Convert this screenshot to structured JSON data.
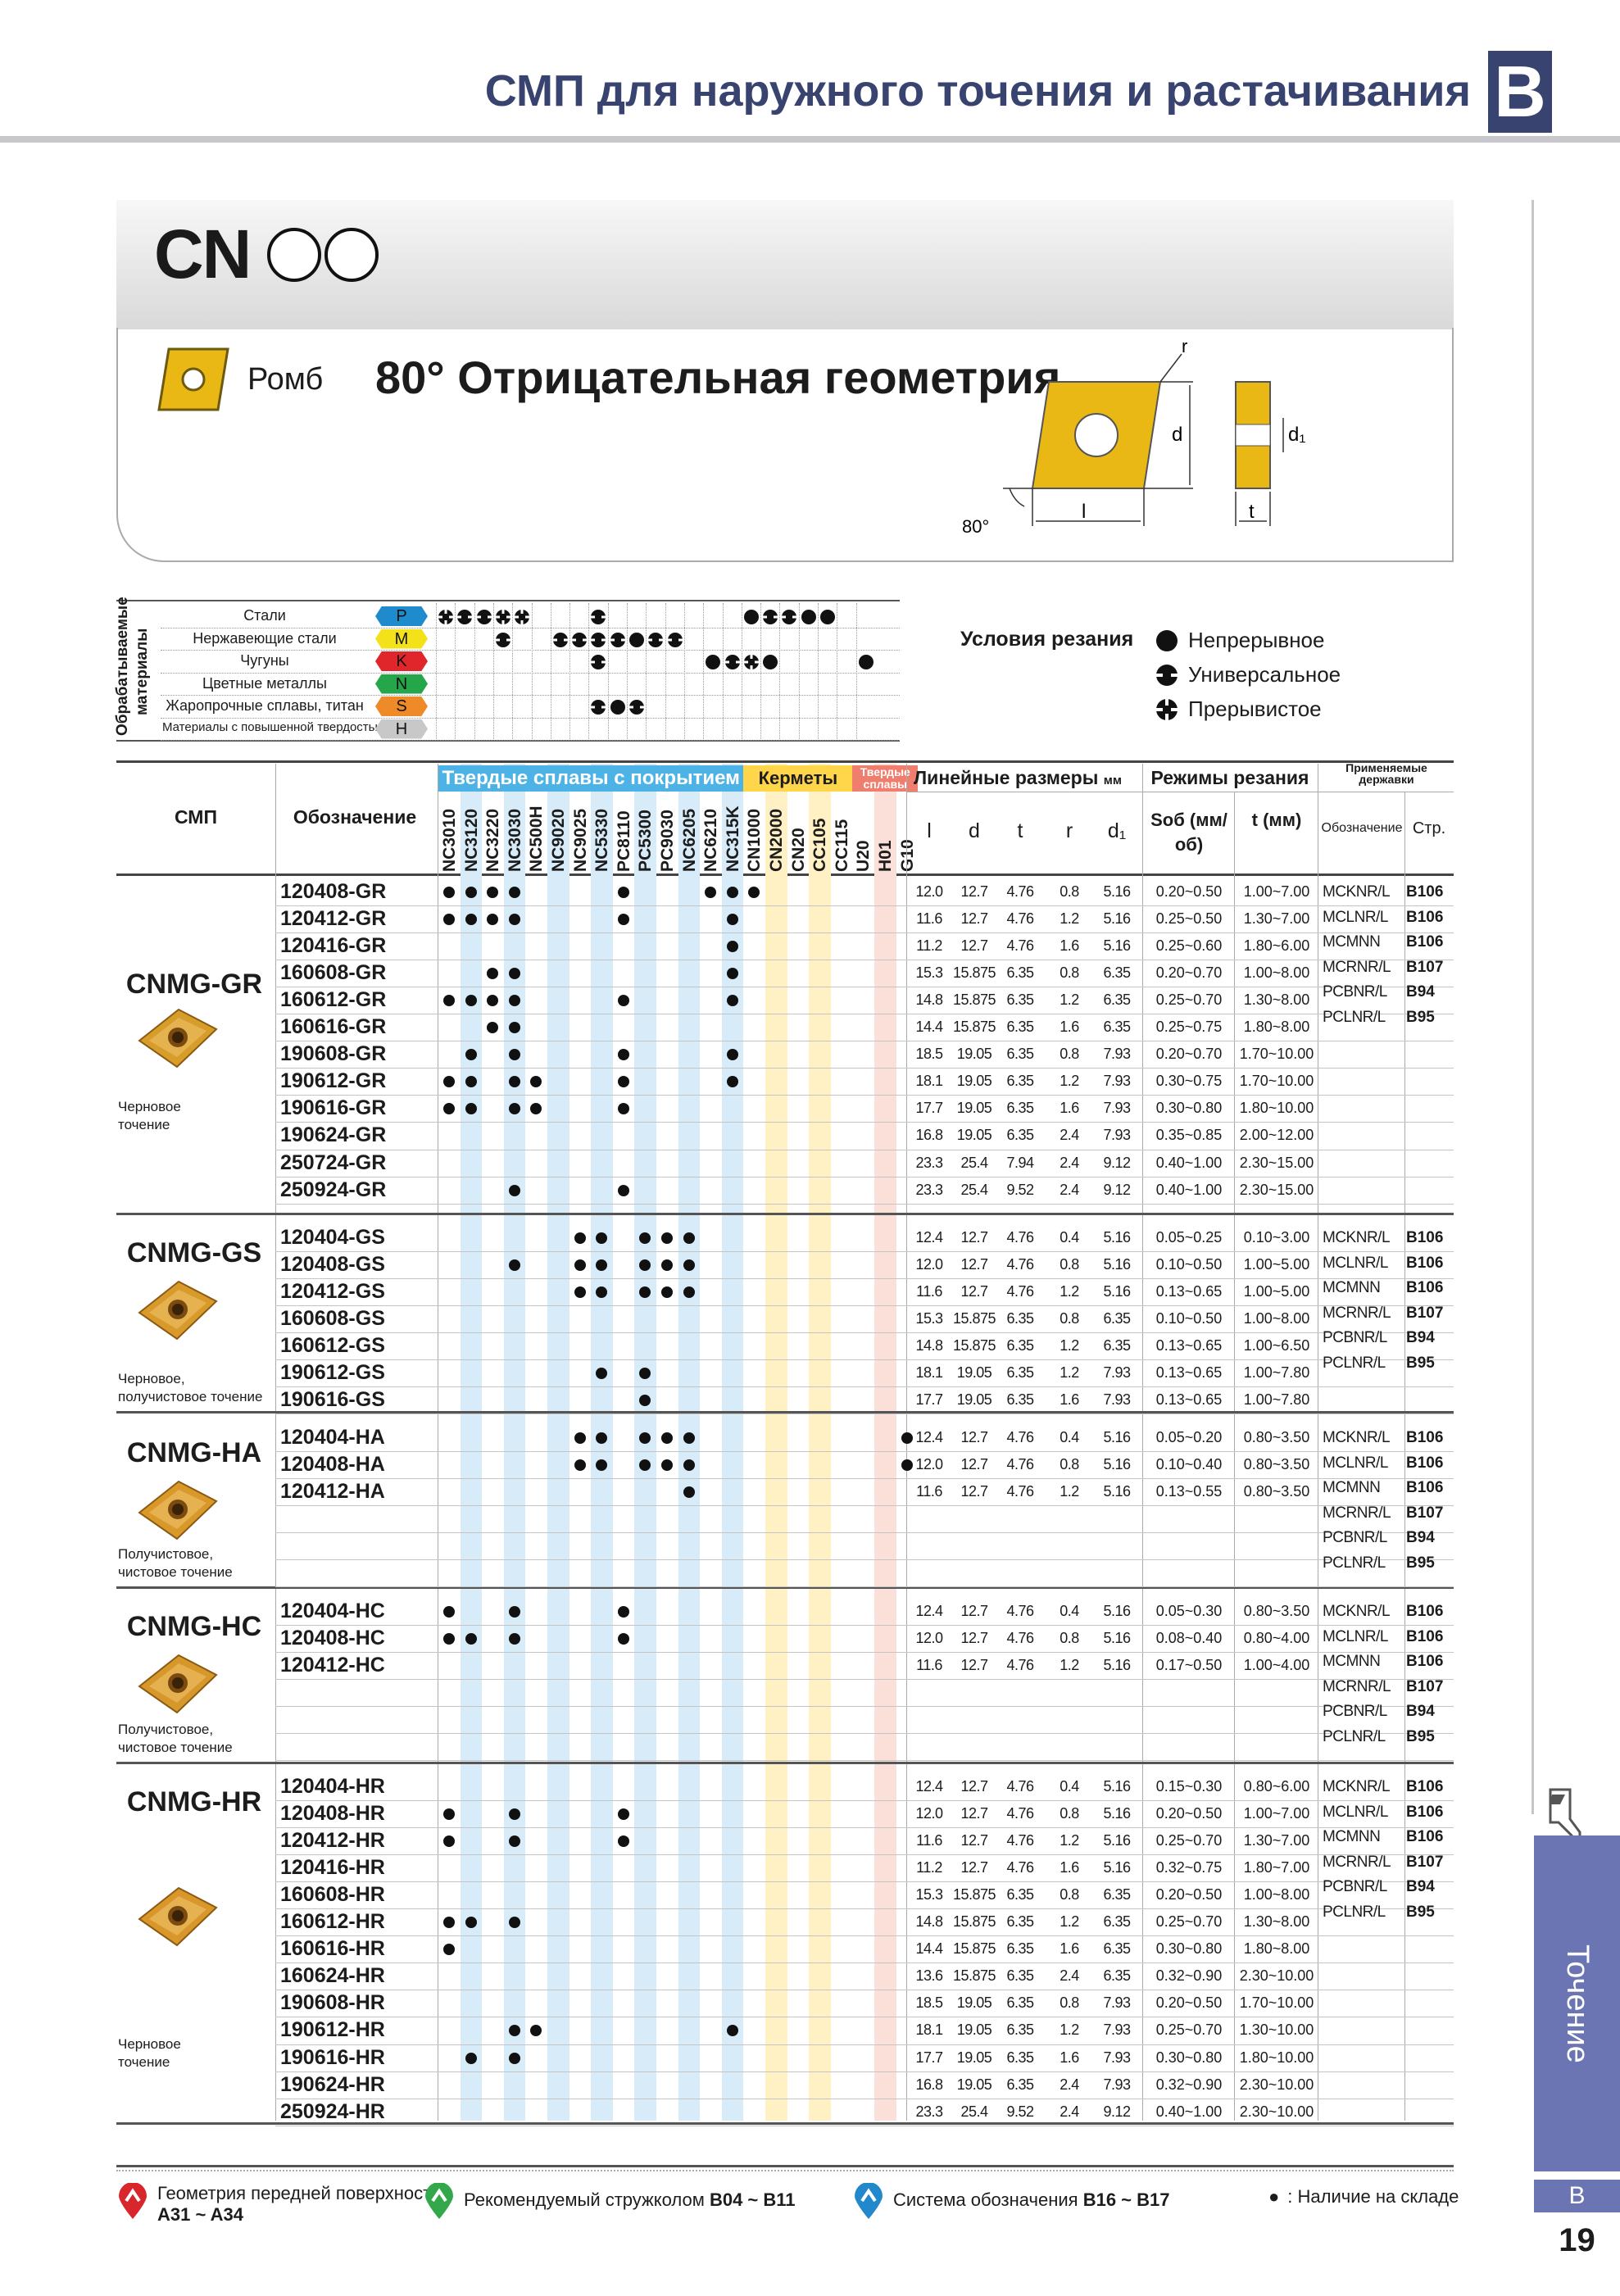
{
  "header": {
    "title": "СМП для наружного точения и растачивания",
    "section_letter": "B"
  },
  "side": {
    "label": "Точение",
    "letter": "B",
    "page": "19"
  },
  "code": {
    "prefix": "CN"
  },
  "shape": {
    "name": "Ромб",
    "geometry": "80° Отрицательная геометрия",
    "dims": {
      "r": "r",
      "d": "d",
      "d1": "d₁",
      "l": "l",
      "t": "t",
      "angle": "80°"
    }
  },
  "materials": {
    "group_label": "Обрабатываемые материалы",
    "rows": [
      {
        "name": "Стали",
        "code": "P",
        "color": "#1e8ccc"
      },
      {
        "name": "Нержавеющие стали",
        "code": "M",
        "color": "#f3e119"
      },
      {
        "name": "Чугуны",
        "code": "K",
        "color": "#e0262b"
      },
      {
        "name": "Цветные металлы",
        "code": "N",
        "color": "#26a64a"
      },
      {
        "name": "Жаропрочные сплавы, титан",
        "code": "S",
        "color": "#ef8a29"
      },
      {
        "name": "Материалы с повышенной твердостью",
        "code": "H",
        "color": "#c8c8c8"
      }
    ]
  },
  "conditions": {
    "title": "Условия резания",
    "items": [
      "Непрерывное",
      "Универсальное",
      "Прерывистое"
    ]
  },
  "table": {
    "col_smp": "СМП",
    "col_designation": "Обозначение",
    "grp_coated": "Твердые сплавы с покрытием",
    "grp_cermet": "Керметы",
    "grp_carbide": "Твердые сплавы",
    "grp_dims": "Линейные размеры",
    "dims_unit": "мм",
    "grp_cutting": "Режимы резания",
    "grp_holders": "Применяемые державки",
    "grades": [
      "NC3010",
      "NC3120",
      "NC3220",
      "NC3030",
      "NC500H",
      "NC9020",
      "NC9025",
      "NC5330",
      "PC8110",
      "PC5300",
      "PC9030",
      "NC6205",
      "NC6210",
      "NC315K",
      "CN1000",
      "CN2000",
      "CN20",
      "CC105",
      "CC115",
      "U20",
      "H01",
      "G10"
    ],
    "dim_cols": [
      "l",
      "d",
      "t",
      "r",
      "d₁"
    ],
    "cut_cols": [
      "Sоб (мм/об)",
      "t (мм)"
    ],
    "holder_cols": [
      "Обозначение",
      "Стр."
    ]
  },
  "groups": [
    {
      "name": "CNMG-GR",
      "caption": [
        "Черновое",
        "точение"
      ],
      "holders": [
        [
          "MCKNR/L",
          "B106"
        ],
        [
          "MCLNR/L",
          "B106"
        ],
        [
          "MCMNN",
          "B106"
        ],
        [
          "MCRNR/L",
          "B107"
        ],
        [
          "PCBNR/L",
          "B94"
        ],
        [
          "PCLNR/L",
          "B95"
        ]
      ],
      "rows": [
        [
          "120408-GR",
          "12.0",
          "12.7",
          "4.76",
          "0.8",
          "5.16",
          "0.20~0.50",
          "1.00~7.00"
        ],
        [
          "120412-GR",
          "11.6",
          "12.7",
          "4.76",
          "1.2",
          "5.16",
          "0.25~0.50",
          "1.30~7.00"
        ],
        [
          "120416-GR",
          "11.2",
          "12.7",
          "4.76",
          "1.6",
          "5.16",
          "0.25~0.60",
          "1.80~6.00"
        ],
        [
          "160608-GR",
          "15.3",
          "15.875",
          "6.35",
          "0.8",
          "6.35",
          "0.20~0.70",
          "1.00~8.00"
        ],
        [
          "160612-GR",
          "14.8",
          "15.875",
          "6.35",
          "1.2",
          "6.35",
          "0.25~0.70",
          "1.30~8.00"
        ],
        [
          "160616-GR",
          "14.4",
          "15.875",
          "6.35",
          "1.6",
          "6.35",
          "0.25~0.75",
          "1.80~8.00"
        ],
        [
          "190608-GR",
          "18.5",
          "19.05",
          "6.35",
          "0.8",
          "7.93",
          "0.20~0.70",
          "1.70~10.00"
        ],
        [
          "190612-GR",
          "18.1",
          "19.05",
          "6.35",
          "1.2",
          "7.93",
          "0.30~0.75",
          "1.70~10.00"
        ],
        [
          "190616-GR",
          "17.7",
          "19.05",
          "6.35",
          "1.6",
          "7.93",
          "0.30~0.80",
          "1.80~10.00"
        ],
        [
          "190624-GR",
          "16.8",
          "19.05",
          "6.35",
          "2.4",
          "7.93",
          "0.35~0.85",
          "2.00~12.00"
        ],
        [
          "250724-GR",
          "23.3",
          "25.4",
          "7.94",
          "2.4",
          "9.12",
          "0.40~1.00",
          "2.30~15.00"
        ],
        [
          "250924-GR",
          "23.3",
          "25.4",
          "9.52",
          "2.4",
          "9.12",
          "0.40~1.00",
          "2.30~15.00"
        ]
      ]
    },
    {
      "name": "CNMG-GS",
      "caption": [
        "Черновое,",
        "получистовое точение"
      ],
      "holders": [
        [
          "MCKNR/L",
          "B106"
        ],
        [
          "MCLNR/L",
          "B106"
        ],
        [
          "MCMNN",
          "B106"
        ],
        [
          "MCRNR/L",
          "B107"
        ],
        [
          "PCBNR/L",
          "B94"
        ],
        [
          "PCLNR/L",
          "B95"
        ]
      ],
      "rows": [
        [
          "120404-GS",
          "12.4",
          "12.7",
          "4.76",
          "0.4",
          "5.16",
          "0.05~0.25",
          "0.10~3.00"
        ],
        [
          "120408-GS",
          "12.0",
          "12.7",
          "4.76",
          "0.8",
          "5.16",
          "0.10~0.50",
          "1.00~5.00"
        ],
        [
          "120412-GS",
          "11.6",
          "12.7",
          "4.76",
          "1.2",
          "5.16",
          "0.13~0.65",
          "1.00~5.00"
        ],
        [
          "160608-GS",
          "15.3",
          "15.875",
          "6.35",
          "0.8",
          "6.35",
          "0.10~0.50",
          "1.00~8.00"
        ],
        [
          "160612-GS",
          "14.8",
          "15.875",
          "6.35",
          "1.2",
          "6.35",
          "0.13~0.65",
          "1.00~6.50"
        ],
        [
          "190612-GS",
          "18.1",
          "19.05",
          "6.35",
          "1.2",
          "7.93",
          "0.13~0.65",
          "1.00~7.80"
        ],
        [
          "190616-GS",
          "17.7",
          "19.05",
          "6.35",
          "1.6",
          "7.93",
          "0.13~0.65",
          "1.00~7.80"
        ]
      ]
    },
    {
      "name": "CNMG-HA",
      "caption": [
        "Получистовое,",
        "чистовое точение"
      ],
      "holders": [
        [
          "MCKNR/L",
          "B106"
        ],
        [
          "MCLNR/L",
          "B106"
        ],
        [
          "MCMNN",
          "B106"
        ],
        [
          "MCRNR/L",
          "B107"
        ],
        [
          "PCBNR/L",
          "B94"
        ],
        [
          "PCLNR/L",
          "B95"
        ]
      ],
      "rows": [
        [
          "120404-HA",
          "12.4",
          "12.7",
          "4.76",
          "0.4",
          "5.16",
          "0.05~0.20",
          "0.80~3.50"
        ],
        [
          "120408-HA",
          "12.0",
          "12.7",
          "4.76",
          "0.8",
          "5.16",
          "0.10~0.40",
          "0.80~3.50"
        ],
        [
          "120412-HA",
          "11.6",
          "12.7",
          "4.76",
          "1.2",
          "5.16",
          "0.13~0.55",
          "0.80~3.50"
        ]
      ]
    },
    {
      "name": "CNMG-HC",
      "caption": [
        "Получистовое,",
        "чистовое точение"
      ],
      "holders": [
        [
          "MCKNR/L",
          "B106"
        ],
        [
          "MCLNR/L",
          "B106"
        ],
        [
          "MCMNN",
          "B106"
        ],
        [
          "MCRNR/L",
          "B107"
        ],
        [
          "PCBNR/L",
          "B94"
        ],
        [
          "PCLNR/L",
          "B95"
        ]
      ],
      "rows": [
        [
          "120404-HC",
          "12.4",
          "12.7",
          "4.76",
          "0.4",
          "5.16",
          "0.05~0.30",
          "0.80~3.50"
        ],
        [
          "120408-HC",
          "12.0",
          "12.7",
          "4.76",
          "0.8",
          "5.16",
          "0.08~0.40",
          "0.80~4.00"
        ],
        [
          "120412-HC",
          "11.6",
          "12.7",
          "4.76",
          "1.2",
          "5.16",
          "0.17~0.50",
          "1.00~4.00"
        ]
      ]
    },
    {
      "name": "CNMG-HR",
      "caption": [
        "Черновое",
        "точение"
      ],
      "holders": [
        [
          "MCKNR/L",
          "B106"
        ],
        [
          "MCLNR/L",
          "B106"
        ],
        [
          "MCMNN",
          "B106"
        ],
        [
          "MCRNR/L",
          "B107"
        ],
        [
          "PCBNR/L",
          "B94"
        ],
        [
          "PCLNR/L",
          "B95"
        ]
      ],
      "rows": [
        [
          "120404-HR",
          "12.4",
          "12.7",
          "4.76",
          "0.4",
          "5.16",
          "0.15~0.30",
          "0.80~6.00"
        ],
        [
          "120408-HR",
          "12.0",
          "12.7",
          "4.76",
          "0.8",
          "5.16",
          "0.20~0.50",
          "1.00~7.00"
        ],
        [
          "120412-HR",
          "11.6",
          "12.7",
          "4.76",
          "1.2",
          "5.16",
          "0.25~0.70",
          "1.30~7.00"
        ],
        [
          "120416-HR",
          "11.2",
          "12.7",
          "4.76",
          "1.6",
          "5.16",
          "0.32~0.75",
          "1.80~7.00"
        ],
        [
          "160608-HR",
          "15.3",
          "15.875",
          "6.35",
          "0.8",
          "6.35",
          "0.20~0.50",
          "1.00~8.00"
        ],
        [
          "160612-HR",
          "14.8",
          "15.875",
          "6.35",
          "1.2",
          "6.35",
          "0.25~0.70",
          "1.30~8.00"
        ],
        [
          "160616-HR",
          "14.4",
          "15.875",
          "6.35",
          "1.6",
          "6.35",
          "0.30~0.80",
          "1.80~8.00"
        ],
        [
          "160624-HR",
          "13.6",
          "15.875",
          "6.35",
          "2.4",
          "6.35",
          "0.32~0.90",
          "2.30~10.00"
        ],
        [
          "190608-HR",
          "18.5",
          "19.05",
          "6.35",
          "0.8",
          "7.93",
          "0.20~0.50",
          "1.70~10.00"
        ],
        [
          "190612-HR",
          "18.1",
          "19.05",
          "6.35",
          "1.2",
          "7.93",
          "0.25~0.70",
          "1.30~10.00"
        ],
        [
          "190616-HR",
          "17.7",
          "19.05",
          "6.35",
          "1.6",
          "7.93",
          "0.30~0.80",
          "1.80~10.00"
        ],
        [
          "190624-HR",
          "16.8",
          "19.05",
          "6.35",
          "2.4",
          "7.93",
          "0.32~0.90",
          "2.30~10.00"
        ],
        [
          "250924-HR",
          "23.3",
          "25.4",
          "9.52",
          "2.4",
          "9.12",
          "0.40~1.00",
          "2.30~10.00"
        ]
      ]
    }
  ],
  "footer": {
    "rake": {
      "text": "Геометрия передней поверхности",
      "ref": "A31 ~ A34"
    },
    "breaker": {
      "text": "Рекомендуемый стружколом",
      "ref": "B04 ~ B11"
    },
    "system": {
      "text": "Система обозначения",
      "ref": "B16 ~ B17"
    },
    "stock": {
      "mark": "●",
      "text": ": Наличие на складе"
    }
  }
}
